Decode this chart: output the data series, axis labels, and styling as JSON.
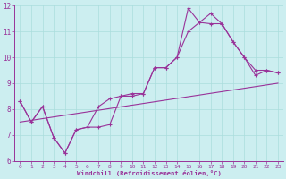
{
  "bg_color": "#cceef0",
  "line_color": "#993399",
  "grid_color": "#aadddd",
  "xlabel": "Windchill (Refroidissement éolien,°C)",
  "xlabel_color": "#993399",
  "tick_color": "#993399",
  "xlim": [
    -0.5,
    23.5
  ],
  "ylim": [
    6,
    12
  ],
  "yticks": [
    6,
    7,
    8,
    9,
    10,
    11,
    12
  ],
  "xticks": [
    0,
    1,
    2,
    3,
    4,
    5,
    6,
    7,
    8,
    9,
    10,
    11,
    12,
    13,
    14,
    15,
    16,
    17,
    18,
    19,
    20,
    21,
    22,
    23
  ],
  "line1_x": [
    0,
    1,
    2,
    3,
    4,
    5,
    6,
    7,
    8,
    9,
    10,
    11,
    12,
    13,
    14,
    15,
    16,
    17,
    18,
    19,
    20,
    21,
    22,
    23
  ],
  "line1_y": [
    8.3,
    7.5,
    8.1,
    6.9,
    6.3,
    7.2,
    7.3,
    7.3,
    7.4,
    8.5,
    8.5,
    8.6,
    9.6,
    9.6,
    10.0,
    11.9,
    11.35,
    11.7,
    11.3,
    10.6,
    10.0,
    9.5,
    9.5,
    9.4
  ],
  "line2_x": [
    0,
    1,
    2,
    3,
    4,
    5,
    6,
    7,
    8,
    9,
    10,
    11,
    12,
    13,
    14,
    15,
    16,
    17,
    18,
    19,
    20,
    21,
    22,
    23
  ],
  "line2_y": [
    8.3,
    7.5,
    8.1,
    6.9,
    6.3,
    7.2,
    7.3,
    8.1,
    8.4,
    8.5,
    8.6,
    8.6,
    9.6,
    9.6,
    10.0,
    11.0,
    11.35,
    11.3,
    11.3,
    10.6,
    10.0,
    9.3,
    9.5,
    9.4
  ],
  "line3_x": [
    0,
    23
  ],
  "line3_y": [
    7.5,
    9.0
  ]
}
